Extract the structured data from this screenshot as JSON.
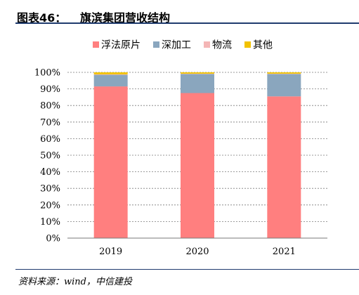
{
  "figure": {
    "number": "图表46：",
    "title": "旗滨集团营收结构",
    "source": "资料来源：wind，中信建投"
  },
  "chart_data": {
    "type": "bar",
    "stacked": true,
    "categories": [
      "2019",
      "2020",
      "2021"
    ],
    "series": [
      {
        "name": "浮法原片",
        "color": "#ff7f7f",
        "values": [
          91.5,
          87.5,
          85.5
        ]
      },
      {
        "name": "深加工",
        "color": "#8aa6be",
        "values": [
          7.0,
          11.5,
          13.5
        ]
      },
      {
        "name": "物流",
        "color": "#f4b6b6",
        "values": [
          0.3,
          0.2,
          0.2
        ]
      },
      {
        "name": "其他",
        "color": "#f2c200",
        "values": [
          1.2,
          0.8,
          0.8
        ]
      }
    ],
    "yticks": [
      "0%",
      "10%",
      "20%",
      "30%",
      "40%",
      "50%",
      "60%",
      "70%",
      "80%",
      "90%",
      "100%"
    ],
    "ylim": [
      0,
      100
    ],
    "grid": "horizontal dashed",
    "legend_position": "top"
  }
}
